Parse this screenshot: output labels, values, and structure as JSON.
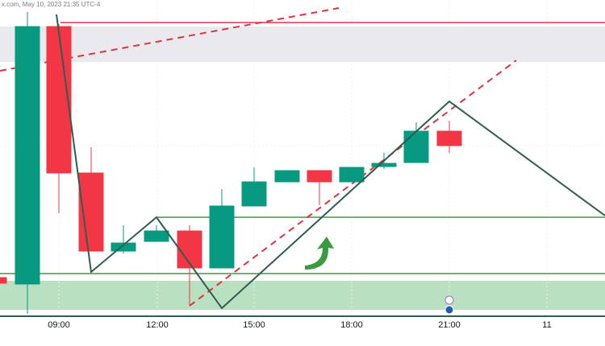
{
  "header": {
    "watermark": "x.com, May 10, 2023 21:35 UTC-4"
  },
  "axis": {
    "labels": [
      "09:00",
      "12:00",
      "15:00",
      "18:00",
      "21:00",
      "11"
    ]
  }
}
